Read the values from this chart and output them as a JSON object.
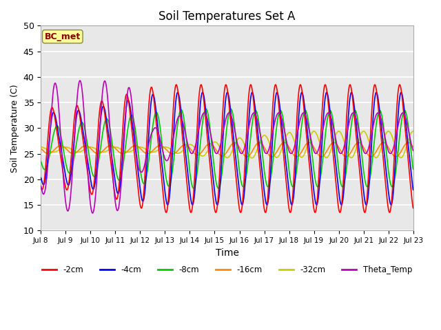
{
  "title": "Soil Temperatures Set A",
  "xlabel": "Time",
  "ylabel": "Soil Temperature (C)",
  "ylim": [
    10,
    50
  ],
  "annotation_text": "BC_met",
  "annotation_color": "#8B0000",
  "annotation_bg": "#FFFF99",
  "bg_color": "#E8E8E8",
  "series": {
    "-2cm": {
      "color": "#FF0000",
      "lw": 1.2
    },
    "-4cm": {
      "color": "#0000FF",
      "lw": 1.2
    },
    "-8cm": {
      "color": "#00CC00",
      "lw": 1.2
    },
    "-16cm": {
      "color": "#FF8800",
      "lw": 1.2
    },
    "-32cm": {
      "color": "#CCCC00",
      "lw": 1.2
    },
    "Theta_Temp": {
      "color": "#BB00BB",
      "lw": 1.2
    }
  },
  "xtick_labels": [
    "Jul 8",
    "Jul 9",
    "Jul 10",
    "Jul 11",
    "Jul 12",
    "Jul 13",
    "Jul 14",
    "Jul 15",
    "Jul 16",
    "Jul 17",
    "Jul 18",
    "Jul 19",
    "Jul 20",
    "Jul 21",
    "Jul 22",
    "Jul 23"
  ],
  "ytick_labels": [
    10,
    15,
    20,
    25,
    30,
    35,
    40,
    45,
    50
  ]
}
